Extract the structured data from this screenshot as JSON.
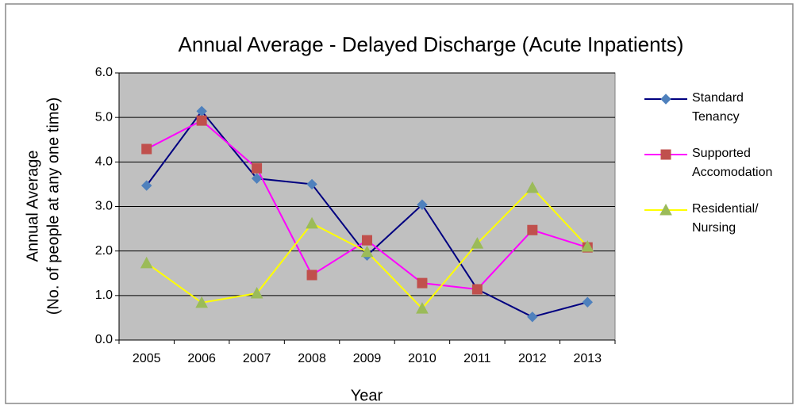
{
  "chart_data": {
    "type": "line",
    "title": "Annual Average - Delayed Discharge (Acute Inpatients)",
    "xlabel": "Year",
    "ylabel": [
      "Annual Average",
      "(No. of people at any one time)"
    ],
    "categories": [
      "2005",
      "2006",
      "2007",
      "2008",
      "2009",
      "2010",
      "2011",
      "2012",
      "2013"
    ],
    "series": [
      {
        "name": "Standard Tenancy",
        "color": "#000080",
        "marker_color": "#4f81bd",
        "marker": "diamond",
        "values": [
          3.47,
          5.14,
          3.63,
          3.5,
          1.9,
          3.04,
          1.14,
          0.52,
          0.85
        ]
      },
      {
        "name": "Supported Accomodation",
        "color": "#ff00ff",
        "marker_color": "#c0504d",
        "marker": "square",
        "values": [
          4.29,
          4.93,
          3.86,
          1.46,
          2.24,
          1.28,
          1.14,
          2.47,
          2.08
        ]
      },
      {
        "name": "Residential/ Nursing",
        "color": "#ffff00",
        "marker_color": "#9bbb59",
        "marker": "triangle",
        "values": [
          1.73,
          0.84,
          1.05,
          2.62,
          1.98,
          0.71,
          2.17,
          3.42,
          2.1
        ]
      }
    ],
    "ylim": [
      0,
      6
    ],
    "yticks": [
      {
        "value": 0,
        "label": "0.0"
      },
      {
        "value": 1,
        "label": "1.0"
      },
      {
        "value": 2,
        "label": "2.0"
      },
      {
        "value": 3,
        "label": "3.0"
      },
      {
        "value": 4,
        "label": "4.0"
      },
      {
        "value": 5,
        "label": "5.0"
      },
      {
        "value": 6,
        "label": "6.0"
      }
    ],
    "grid": true,
    "legend": "right",
    "plot_background": "#c0c0c0"
  }
}
